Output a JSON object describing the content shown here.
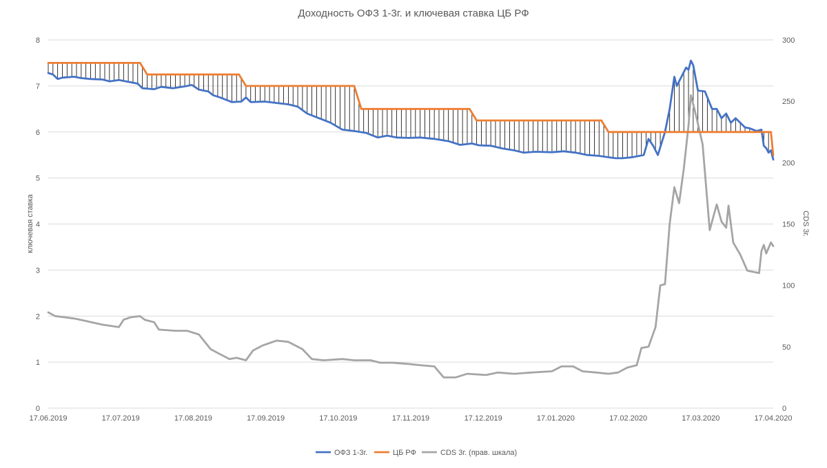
{
  "chart_data": {
    "type": "line",
    "title": "Доходность ОФЗ 1-3г. и ключевая ставка ЦБ РФ",
    "ylabel_left": "ключевая ставка",
    "ylabel_right": "CDS 3г.",
    "xlabel": "",
    "x_ticks": [
      "17.06.2019",
      "17.07.2019",
      "17.08.2019",
      "17.09.2019",
      "17.10.2019",
      "17.11.2019",
      "17.12.2019",
      "17.01.2020",
      "17.02.2020",
      "17.03.2020",
      "17.04.2020"
    ],
    "y_left_ticks": [
      "0",
      "1",
      "2",
      "3",
      "4",
      "5",
      "6",
      "7",
      "8"
    ],
    "y_right_ticks": [
      "0",
      "50",
      "100",
      "150",
      "200",
      "250",
      "300"
    ],
    "ylim_left": [
      0,
      8
    ],
    "ylim_right": [
      0,
      300
    ],
    "xlim": [
      "2019-06-17",
      "2020-04-20"
    ],
    "grid": "horizontal",
    "legend_position": "bottom",
    "drop_lines": "between ОФЗ 1-3г. and ЦБ РФ",
    "series": [
      {
        "name": "ОФЗ 1-3г.",
        "axis": "left",
        "color": "#4472C4",
        "points": [
          [
            "2019-06-17",
            7.28
          ],
          [
            "2019-06-19",
            7.25
          ],
          [
            "2019-06-21",
            7.15
          ],
          [
            "2019-06-23",
            7.18
          ],
          [
            "2019-06-28",
            7.2
          ],
          [
            "2019-07-01",
            7.17
          ],
          [
            "2019-07-05",
            7.15
          ],
          [
            "2019-07-10",
            7.14
          ],
          [
            "2019-07-13",
            7.1
          ],
          [
            "2019-07-17",
            7.13
          ],
          [
            "2019-07-25",
            7.05
          ],
          [
            "2019-07-27",
            6.95
          ],
          [
            "2019-08-01",
            6.93
          ],
          [
            "2019-08-04",
            6.98
          ],
          [
            "2019-08-09",
            6.95
          ],
          [
            "2019-08-14",
            6.99
          ],
          [
            "2019-08-17",
            7.02
          ],
          [
            "2019-08-20",
            6.92
          ],
          [
            "2019-08-24",
            6.88
          ],
          [
            "2019-08-26",
            6.8
          ],
          [
            "2019-08-29",
            6.75
          ],
          [
            "2019-09-03",
            6.65
          ],
          [
            "2019-09-07",
            6.66
          ],
          [
            "2019-09-09",
            6.75
          ],
          [
            "2019-09-11",
            6.65
          ],
          [
            "2019-09-17",
            6.66
          ],
          [
            "2019-09-22",
            6.63
          ],
          [
            "2019-09-27",
            6.6
          ],
          [
            "2019-10-01",
            6.55
          ],
          [
            "2019-10-05",
            6.4
          ],
          [
            "2019-10-10",
            6.3
          ],
          [
            "2019-10-15",
            6.2
          ],
          [
            "2019-10-20",
            6.05
          ],
          [
            "2019-10-25",
            6.02
          ],
          [
            "2019-10-30",
            5.98
          ],
          [
            "2019-11-04",
            5.88
          ],
          [
            "2019-11-08",
            5.92
          ],
          [
            "2019-11-12",
            5.88
          ],
          [
            "2019-11-17",
            5.87
          ],
          [
            "2019-11-22",
            5.88
          ],
          [
            "2019-11-28",
            5.85
          ],
          [
            "2019-12-04",
            5.8
          ],
          [
            "2019-12-09",
            5.72
          ],
          [
            "2019-12-14",
            5.75
          ],
          [
            "2019-12-17",
            5.71
          ],
          [
            "2019-12-22",
            5.7
          ],
          [
            "2019-12-27",
            5.64
          ],
          [
            "2020-01-01",
            5.6
          ],
          [
            "2020-01-05",
            5.55
          ],
          [
            "2020-01-10",
            5.57
          ],
          [
            "2020-01-17",
            5.56
          ],
          [
            "2020-01-22",
            5.58
          ],
          [
            "2020-01-27",
            5.55
          ],
          [
            "2020-02-01",
            5.5
          ],
          [
            "2020-02-06",
            5.48
          ],
          [
            "2020-02-10",
            5.45
          ],
          [
            "2020-02-13",
            5.43
          ],
          [
            "2020-02-16",
            5.43
          ],
          [
            "2020-02-20",
            5.45
          ],
          [
            "2020-02-25",
            5.5
          ],
          [
            "2020-02-27",
            5.85
          ],
          [
            "2020-02-29",
            5.7
          ],
          [
            "2020-03-02",
            5.5
          ],
          [
            "2020-03-05",
            6.0
          ],
          [
            "2020-03-07",
            6.5
          ],
          [
            "2020-03-09",
            7.2
          ],
          [
            "2020-03-10",
            7.0
          ],
          [
            "2020-03-12",
            7.2
          ],
          [
            "2020-03-14",
            7.4
          ],
          [
            "2020-03-15",
            7.35
          ],
          [
            "2020-03-16",
            7.55
          ],
          [
            "2020-03-17",
            7.45
          ],
          [
            "2020-03-19",
            6.9
          ],
          [
            "2020-03-22",
            6.88
          ],
          [
            "2020-03-25",
            6.5
          ],
          [
            "2020-03-27",
            6.5
          ],
          [
            "2020-03-29",
            6.3
          ],
          [
            "2020-03-31",
            6.4
          ],
          [
            "2020-04-02",
            6.2
          ],
          [
            "2020-04-04",
            6.3
          ],
          [
            "2020-04-06",
            6.2
          ],
          [
            "2020-04-08",
            6.1
          ],
          [
            "2020-04-10",
            6.08
          ],
          [
            "2020-04-13",
            6.02
          ],
          [
            "2020-04-15",
            6.05
          ],
          [
            "2020-04-16",
            5.7
          ],
          [
            "2020-04-17",
            5.65
          ],
          [
            "2020-04-18",
            5.55
          ],
          [
            "2020-04-19",
            5.6
          ],
          [
            "2020-04-20",
            5.4
          ]
        ]
      },
      {
        "name": "ЦБ РФ",
        "axis": "left",
        "color": "#ED7D31",
        "points": [
          [
            "2019-06-17",
            7.5
          ],
          [
            "2019-07-26",
            7.5
          ],
          [
            "2019-07-29",
            7.25
          ],
          [
            "2019-09-06",
            7.25
          ],
          [
            "2019-09-09",
            7.0
          ],
          [
            "2019-10-25",
            7.0
          ],
          [
            "2019-10-28",
            6.5
          ],
          [
            "2019-12-13",
            6.5
          ],
          [
            "2019-12-16",
            6.25
          ],
          [
            "2020-02-07",
            6.25
          ],
          [
            "2020-02-10",
            6.0
          ],
          [
            "2020-04-19",
            6.0
          ],
          [
            "2020-04-20",
            5.5
          ]
        ]
      },
      {
        "name": "CDS 3г. (прав. шкала)",
        "axis": "right",
        "color": "#A5A5A5",
        "points": [
          [
            "2019-06-17",
            78
          ],
          [
            "2019-06-20",
            75
          ],
          [
            "2019-06-24",
            74
          ],
          [
            "2019-06-28",
            73
          ],
          [
            "2019-07-03",
            71
          ],
          [
            "2019-07-10",
            68
          ],
          [
            "2019-07-17",
            66
          ],
          [
            "2019-07-19",
            72
          ],
          [
            "2019-07-22",
            74
          ],
          [
            "2019-07-26",
            75
          ],
          [
            "2019-07-28",
            72
          ],
          [
            "2019-08-01",
            70
          ],
          [
            "2019-08-03",
            64
          ],
          [
            "2019-08-10",
            63
          ],
          [
            "2019-08-15",
            63
          ],
          [
            "2019-08-20",
            60
          ],
          [
            "2019-08-25",
            48
          ],
          [
            "2019-08-28",
            45
          ],
          [
            "2019-09-02",
            40
          ],
          [
            "2019-09-05",
            41
          ],
          [
            "2019-09-09",
            39
          ],
          [
            "2019-09-12",
            47
          ],
          [
            "2019-09-16",
            51
          ],
          [
            "2019-09-22",
            55
          ],
          [
            "2019-09-27",
            54
          ],
          [
            "2019-10-03",
            48
          ],
          [
            "2019-10-07",
            40
          ],
          [
            "2019-10-12",
            39
          ],
          [
            "2019-10-20",
            40
          ],
          [
            "2019-10-25",
            39
          ],
          [
            "2019-11-01",
            39
          ],
          [
            "2019-11-05",
            37
          ],
          [
            "2019-11-10",
            37
          ],
          [
            "2019-11-17",
            36
          ],
          [
            "2019-11-22",
            35
          ],
          [
            "2019-11-28",
            34
          ],
          [
            "2019-12-02",
            25
          ],
          [
            "2019-12-07",
            25
          ],
          [
            "2019-12-12",
            28
          ],
          [
            "2019-12-20",
            27
          ],
          [
            "2019-12-25",
            29
          ],
          [
            "2020-01-01",
            28
          ],
          [
            "2020-01-08",
            29
          ],
          [
            "2020-01-17",
            30
          ],
          [
            "2020-01-21",
            34
          ],
          [
            "2020-01-26",
            34
          ],
          [
            "2020-01-30",
            30
          ],
          [
            "2020-02-05",
            29
          ],
          [
            "2020-02-10",
            28
          ],
          [
            "2020-02-14",
            29
          ],
          [
            "2020-02-18",
            33
          ],
          [
            "2020-02-22",
            35
          ],
          [
            "2020-02-24",
            49
          ],
          [
            "2020-02-27",
            50
          ],
          [
            "2020-03-01",
            66
          ],
          [
            "2020-03-03",
            100
          ],
          [
            "2020-03-05",
            101
          ],
          [
            "2020-03-07",
            150
          ],
          [
            "2020-03-09",
            180
          ],
          [
            "2020-03-11",
            167
          ],
          [
            "2020-03-13",
            195
          ],
          [
            "2020-03-15",
            230
          ],
          [
            "2020-03-16",
            255
          ],
          [
            "2020-03-18",
            240
          ],
          [
            "2020-03-21",
            215
          ],
          [
            "2020-03-24",
            145
          ],
          [
            "2020-03-27",
            166
          ],
          [
            "2020-03-29",
            152
          ],
          [
            "2020-03-31",
            147
          ],
          [
            "2020-04-01",
            165
          ],
          [
            "2020-04-03",
            135
          ],
          [
            "2020-04-06",
            125
          ],
          [
            "2020-04-09",
            112
          ],
          [
            "2020-04-14",
            110
          ],
          [
            "2020-04-15",
            128
          ],
          [
            "2020-04-16",
            133
          ],
          [
            "2020-04-17",
            126
          ],
          [
            "2020-04-19",
            135
          ],
          [
            "2020-04-20",
            132
          ]
        ]
      }
    ]
  }
}
